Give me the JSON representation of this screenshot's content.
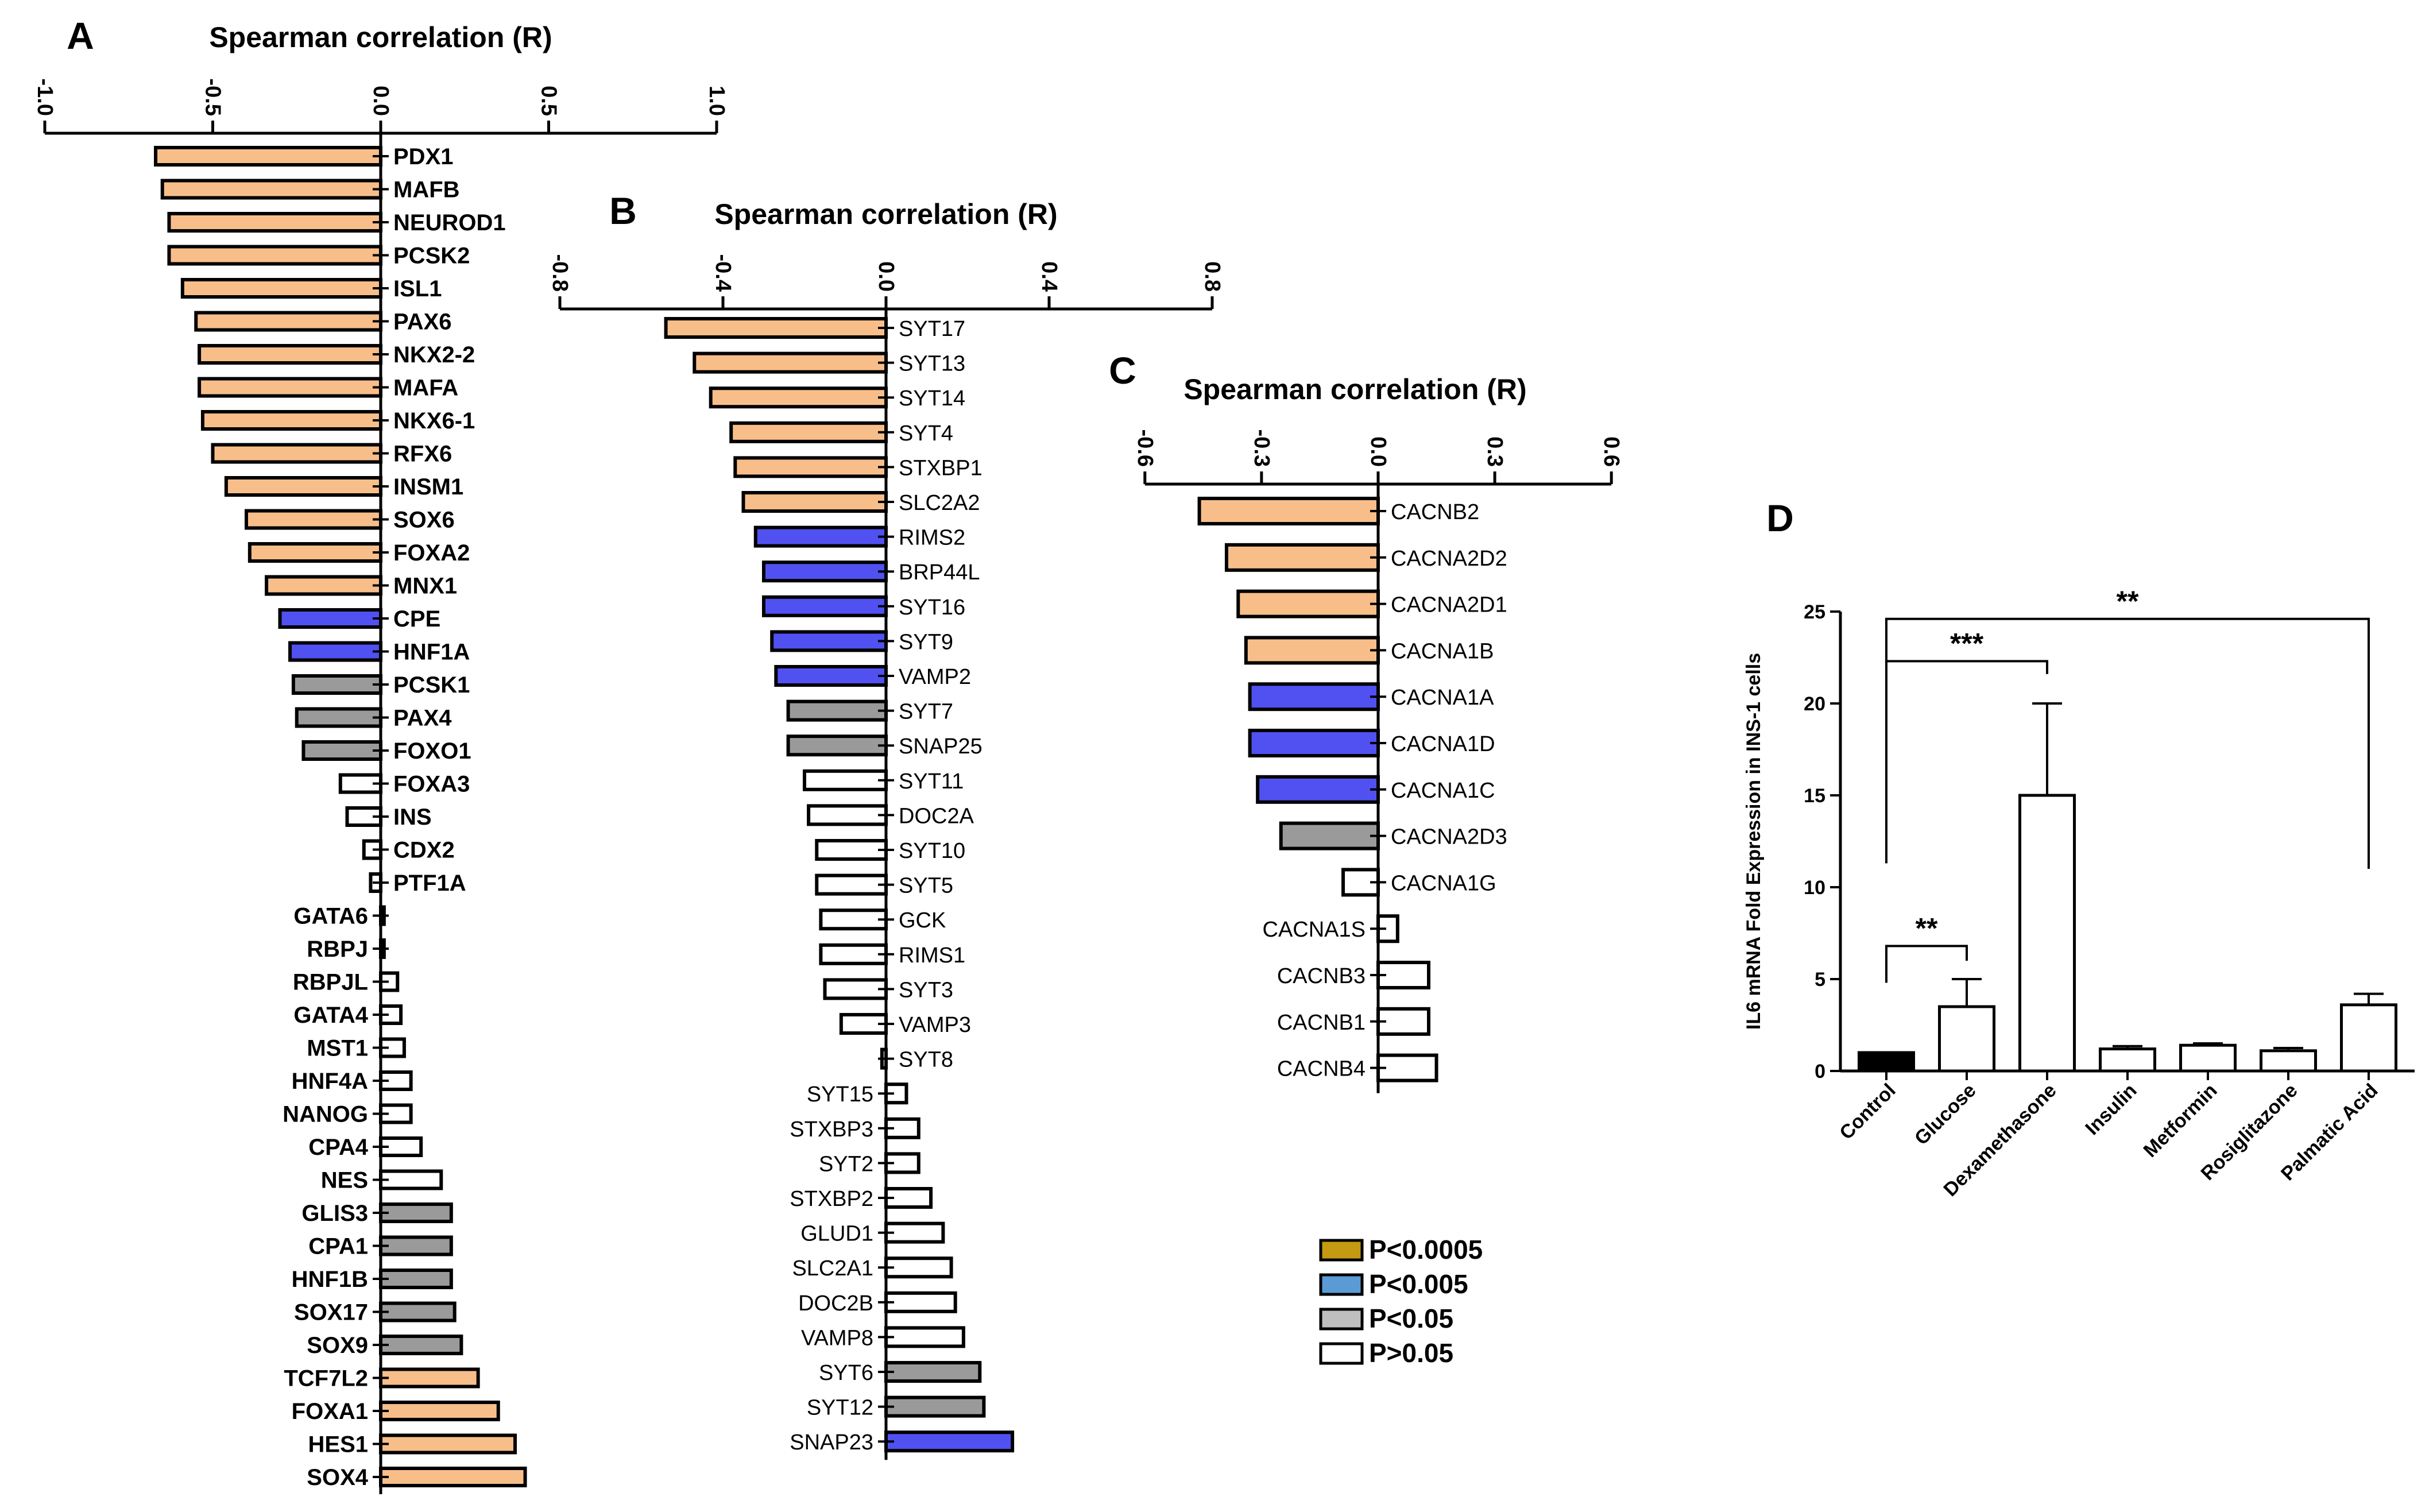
{
  "colors": {
    "orange": "#F8BE8A",
    "blue": "#5051F0",
    "gray": "#9A9A9A",
    "white": "#FFFFFF",
    "black": "#000000",
    "legend_gold": "#C39A12",
    "legend_blue": "#5A9BD5",
    "legend_gray": "#BFBFBF"
  },
  "legend": [
    {
      "label": "P<0.0005",
      "color": "legend_gold"
    },
    {
      "label": "P<0.005",
      "color": "legend_blue"
    },
    {
      "label": "P<0.05",
      "color": "legend_gray"
    },
    {
      "label": "P>0.05",
      "color": "white"
    }
  ],
  "chart_data": [
    {
      "panel": "A",
      "type": "bar",
      "orientation": "horizontal",
      "title": "Spearman correlation (R)",
      "xlim": [
        -1.0,
        1.0
      ],
      "ticks": [
        "-1.0",
        "-0.5",
        "0.0",
        "0.5",
        "1.0"
      ],
      "tick_values": [
        -1.0,
        -0.5,
        0.0,
        0.5,
        1.0
      ],
      "bars": [
        {
          "gene": "PDX1",
          "value": -0.67,
          "sig": "orange"
        },
        {
          "gene": "MAFB",
          "value": -0.65,
          "sig": "orange"
        },
        {
          "gene": "NEUROD1",
          "value": -0.63,
          "sig": "orange"
        },
        {
          "gene": "PCSK2",
          "value": -0.63,
          "sig": "orange"
        },
        {
          "gene": "ISL1",
          "value": -0.59,
          "sig": "orange"
        },
        {
          "gene": "PAX6",
          "value": -0.55,
          "sig": "orange"
        },
        {
          "gene": "NKX2-2",
          "value": -0.54,
          "sig": "orange"
        },
        {
          "gene": "MAFA",
          "value": -0.54,
          "sig": "orange"
        },
        {
          "gene": "NKX6-1",
          "value": -0.53,
          "sig": "orange"
        },
        {
          "gene": "RFX6",
          "value": -0.5,
          "sig": "orange"
        },
        {
          "gene": "INSM1",
          "value": -0.46,
          "sig": "orange"
        },
        {
          "gene": "SOX6",
          "value": -0.4,
          "sig": "orange"
        },
        {
          "gene": "FOXA2",
          "value": -0.39,
          "sig": "orange"
        },
        {
          "gene": "MNX1",
          "value": -0.34,
          "sig": "orange"
        },
        {
          "gene": "CPE",
          "value": -0.3,
          "sig": "blue"
        },
        {
          "gene": "HNF1A",
          "value": -0.27,
          "sig": "blue"
        },
        {
          "gene": "PCSK1",
          "value": -0.26,
          "sig": "gray"
        },
        {
          "gene": "PAX4",
          "value": -0.25,
          "sig": "gray"
        },
        {
          "gene": "FOXO1",
          "value": -0.23,
          "sig": "gray"
        },
        {
          "gene": "FOXA3",
          "value": -0.12,
          "sig": "white"
        },
        {
          "gene": "INS",
          "value": -0.1,
          "sig": "white"
        },
        {
          "gene": "CDX2",
          "value": -0.05,
          "sig": "white"
        },
        {
          "gene": "PTF1A",
          "value": -0.03,
          "sig": "white"
        },
        {
          "gene": "GATA6",
          "value": 0.01,
          "sig": "white"
        },
        {
          "gene": "RBPJ",
          "value": 0.01,
          "sig": "white"
        },
        {
          "gene": "RBPJL",
          "value": 0.05,
          "sig": "white"
        },
        {
          "gene": "GATA4",
          "value": 0.06,
          "sig": "white"
        },
        {
          "gene": "MST1",
          "value": 0.07,
          "sig": "white"
        },
        {
          "gene": "HNF4A",
          "value": 0.09,
          "sig": "white"
        },
        {
          "gene": "NANOG",
          "value": 0.09,
          "sig": "white"
        },
        {
          "gene": "CPA4",
          "value": 0.12,
          "sig": "white"
        },
        {
          "gene": "NES",
          "value": 0.18,
          "sig": "white"
        },
        {
          "gene": "GLIS3",
          "value": 0.21,
          "sig": "gray"
        },
        {
          "gene": "CPA1",
          "value": 0.21,
          "sig": "gray"
        },
        {
          "gene": "HNF1B",
          "value": 0.21,
          "sig": "gray"
        },
        {
          "gene": "SOX17",
          "value": 0.22,
          "sig": "gray"
        },
        {
          "gene": "SOX9",
          "value": 0.24,
          "sig": "gray"
        },
        {
          "gene": "TCF7L2",
          "value": 0.29,
          "sig": "orange"
        },
        {
          "gene": "FOXA1",
          "value": 0.35,
          "sig": "orange"
        },
        {
          "gene": "HES1",
          "value": 0.4,
          "sig": "orange"
        },
        {
          "gene": "SOX4",
          "value": 0.43,
          "sig": "orange"
        }
      ]
    },
    {
      "panel": "B",
      "type": "bar",
      "orientation": "horizontal",
      "title": "Spearman correlation (R)",
      "xlim": [
        -0.8,
        0.8
      ],
      "ticks": [
        "-0.8",
        "-0.4",
        "0.0",
        "0.4",
        "0.8"
      ],
      "tick_values": [
        -0.8,
        -0.4,
        0.0,
        0.4,
        0.8
      ],
      "bars": [
        {
          "gene": "SYT17",
          "value": -0.54,
          "sig": "orange"
        },
        {
          "gene": "SYT13",
          "value": -0.47,
          "sig": "orange"
        },
        {
          "gene": "SYT14",
          "value": -0.43,
          "sig": "orange"
        },
        {
          "gene": "SYT4",
          "value": -0.38,
          "sig": "orange"
        },
        {
          "gene": "STXBP1",
          "value": -0.37,
          "sig": "orange"
        },
        {
          "gene": "SLC2A2",
          "value": -0.35,
          "sig": "orange"
        },
        {
          "gene": "RIMS2",
          "value": -0.32,
          "sig": "blue"
        },
        {
          "gene": "BRP44L",
          "value": -0.3,
          "sig": "blue"
        },
        {
          "gene": "SYT16",
          "value": -0.3,
          "sig": "blue"
        },
        {
          "gene": "SYT9",
          "value": -0.28,
          "sig": "blue"
        },
        {
          "gene": "VAMP2",
          "value": -0.27,
          "sig": "blue"
        },
        {
          "gene": "SYT7",
          "value": -0.24,
          "sig": "gray"
        },
        {
          "gene": "SNAP25",
          "value": -0.24,
          "sig": "gray"
        },
        {
          "gene": "SYT11",
          "value": -0.2,
          "sig": "white"
        },
        {
          "gene": "DOC2A",
          "value": -0.19,
          "sig": "white"
        },
        {
          "gene": "SYT10",
          "value": -0.17,
          "sig": "white"
        },
        {
          "gene": "SYT5",
          "value": -0.17,
          "sig": "white"
        },
        {
          "gene": "GCK",
          "value": -0.16,
          "sig": "white"
        },
        {
          "gene": "RIMS1",
          "value": -0.16,
          "sig": "white"
        },
        {
          "gene": "SYT3",
          "value": -0.15,
          "sig": "white"
        },
        {
          "gene": "VAMP3",
          "value": -0.11,
          "sig": "white"
        },
        {
          "gene": "SYT8",
          "value": -0.01,
          "sig": "white"
        },
        {
          "gene": "SYT15",
          "value": 0.05,
          "sig": "white"
        },
        {
          "gene": "STXBP3",
          "value": 0.08,
          "sig": "white"
        },
        {
          "gene": "SYT2",
          "value": 0.08,
          "sig": "white"
        },
        {
          "gene": "STXBP2",
          "value": 0.11,
          "sig": "white"
        },
        {
          "gene": "GLUD1",
          "value": 0.14,
          "sig": "white"
        },
        {
          "gene": "SLC2A1",
          "value": 0.16,
          "sig": "white"
        },
        {
          "gene": "DOC2B",
          "value": 0.17,
          "sig": "white"
        },
        {
          "gene": "VAMP8",
          "value": 0.19,
          "sig": "white"
        },
        {
          "gene": "SYT6",
          "value": 0.23,
          "sig": "gray"
        },
        {
          "gene": "SYT12",
          "value": 0.24,
          "sig": "gray"
        },
        {
          "gene": "SNAP23",
          "value": 0.31,
          "sig": "blue"
        }
      ]
    },
    {
      "panel": "C",
      "type": "bar",
      "orientation": "horizontal",
      "title": "Spearman correlation (R)",
      "xlim": [
        -0.6,
        0.6
      ],
      "ticks": [
        "-0.6",
        "-0.3",
        "0.0",
        "0.3",
        "0.6"
      ],
      "tick_values": [
        -0.6,
        -0.3,
        0.0,
        0.3,
        0.6
      ],
      "bars": [
        {
          "gene": "CACNB2",
          "value": -0.46,
          "sig": "orange"
        },
        {
          "gene": "CACNA2D2",
          "value": -0.39,
          "sig": "orange"
        },
        {
          "gene": "CACNA2D1",
          "value": -0.36,
          "sig": "orange"
        },
        {
          "gene": "CACNA1B",
          "value": -0.34,
          "sig": "orange"
        },
        {
          "gene": "CACNA1A",
          "value": -0.33,
          "sig": "blue"
        },
        {
          "gene": "CACNA1D",
          "value": -0.33,
          "sig": "blue"
        },
        {
          "gene": "CACNA1C",
          "value": -0.31,
          "sig": "blue"
        },
        {
          "gene": "CACNA2D3",
          "value": -0.25,
          "sig": "gray"
        },
        {
          "gene": "CACNA1G",
          "value": -0.09,
          "sig": "white"
        },
        {
          "gene": "CACNA1S",
          "value": 0.05,
          "sig": "white"
        },
        {
          "gene": "CACNB3",
          "value": 0.13,
          "sig": "white"
        },
        {
          "gene": "CACNB1",
          "value": 0.13,
          "sig": "white"
        },
        {
          "gene": "CACNB4",
          "value": 0.15,
          "sig": "white"
        }
      ]
    },
    {
      "panel": "D",
      "type": "bar",
      "orientation": "vertical",
      "ylabel": "IL6 mRNA Fold Expression in INS-1 cells",
      "ylim": [
        0,
        25
      ],
      "yticks": [
        "0",
        "5",
        "10",
        "15",
        "20",
        "25"
      ],
      "ytick_values": [
        0,
        5,
        10,
        15,
        20,
        25
      ],
      "categories": [
        "Control",
        "Glucose",
        "Dexamethasone",
        "Insulin",
        "Metformin",
        "Rosiglitazone",
        "Palmatic Acid"
      ],
      "values": [
        1.0,
        3.5,
        15.0,
        1.2,
        1.4,
        1.1,
        3.6
      ],
      "errors": [
        0.0,
        1.5,
        5.0,
        0.15,
        0.1,
        0.15,
        0.6
      ],
      "fills": [
        "black",
        "white",
        "white",
        "white",
        "white",
        "white",
        "white"
      ],
      "significance": [
        {
          "from": 0,
          "to": 1,
          "label": "**"
        },
        {
          "from": 0,
          "to": 2,
          "label": "***"
        },
        {
          "from": 0,
          "to": 6,
          "label": "**"
        }
      ]
    }
  ]
}
